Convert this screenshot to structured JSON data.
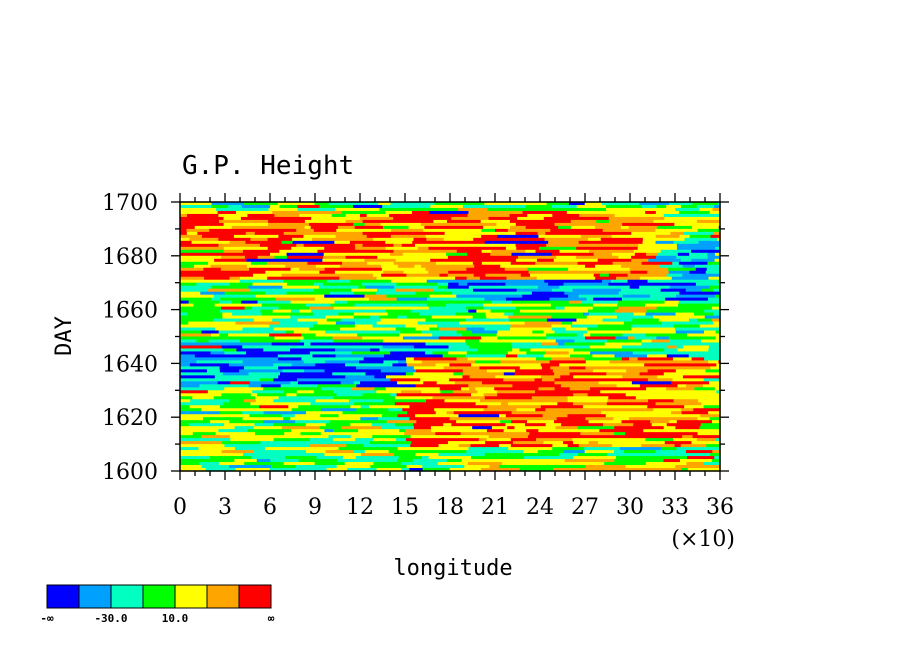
{
  "chart_data": {
    "type": "heatmap",
    "title": "G.P. Height",
    "xlabel": "longitude",
    "ylabel": "DAY",
    "x_multiplier_label": "(×10)",
    "xlim": [
      0,
      36
    ],
    "ylim": [
      1600,
      1700
    ],
    "x_ticks": [
      0,
      3,
      6,
      9,
      12,
      15,
      18,
      21,
      24,
      27,
      30,
      33,
      36
    ],
    "x_tick_labels": [
      "0",
      "3",
      "6",
      "9",
      "12",
      "15",
      "18",
      "21",
      "24",
      "27",
      "30",
      "33",
      "36"
    ],
    "y_ticks": [
      1600,
      1620,
      1640,
      1660,
      1680,
      1700
    ],
    "y_tick_labels": [
      "1600",
      "1620",
      "1640",
      "1660",
      "1680",
      "1700"
    ],
    "colorbar": {
      "colors": [
        "#0000ff",
        "#00a0ff",
        "#00ffc0",
        "#00ff00",
        "#ffff00",
        "#ffa500",
        "#ff0000"
      ],
      "labels": [
        "-∞",
        "-30.0",
        "10.0",
        "∞"
      ]
    },
    "bands": [
      {
        "x0": 0,
        "y0": 1632,
        "x1": 17,
        "y1": 1648,
        "level": 1
      },
      {
        "x0": 18,
        "y0": 1664,
        "x1": 36,
        "y1": 1686,
        "level": 1
      },
      {
        "x0": 15,
        "y0": 1610,
        "x1": 36,
        "y1": 1643,
        "level": 5
      },
      {
        "x0": 0,
        "y0": 1672,
        "x1": 32,
        "y1": 1697,
        "level": 5
      },
      {
        "x0": 0,
        "y0": 1650,
        "x1": 18,
        "y1": 1660,
        "level": 3
      },
      {
        "x0": 20,
        "y0": 1600,
        "x1": 36,
        "y1": 1606,
        "level": 4
      }
    ]
  }
}
